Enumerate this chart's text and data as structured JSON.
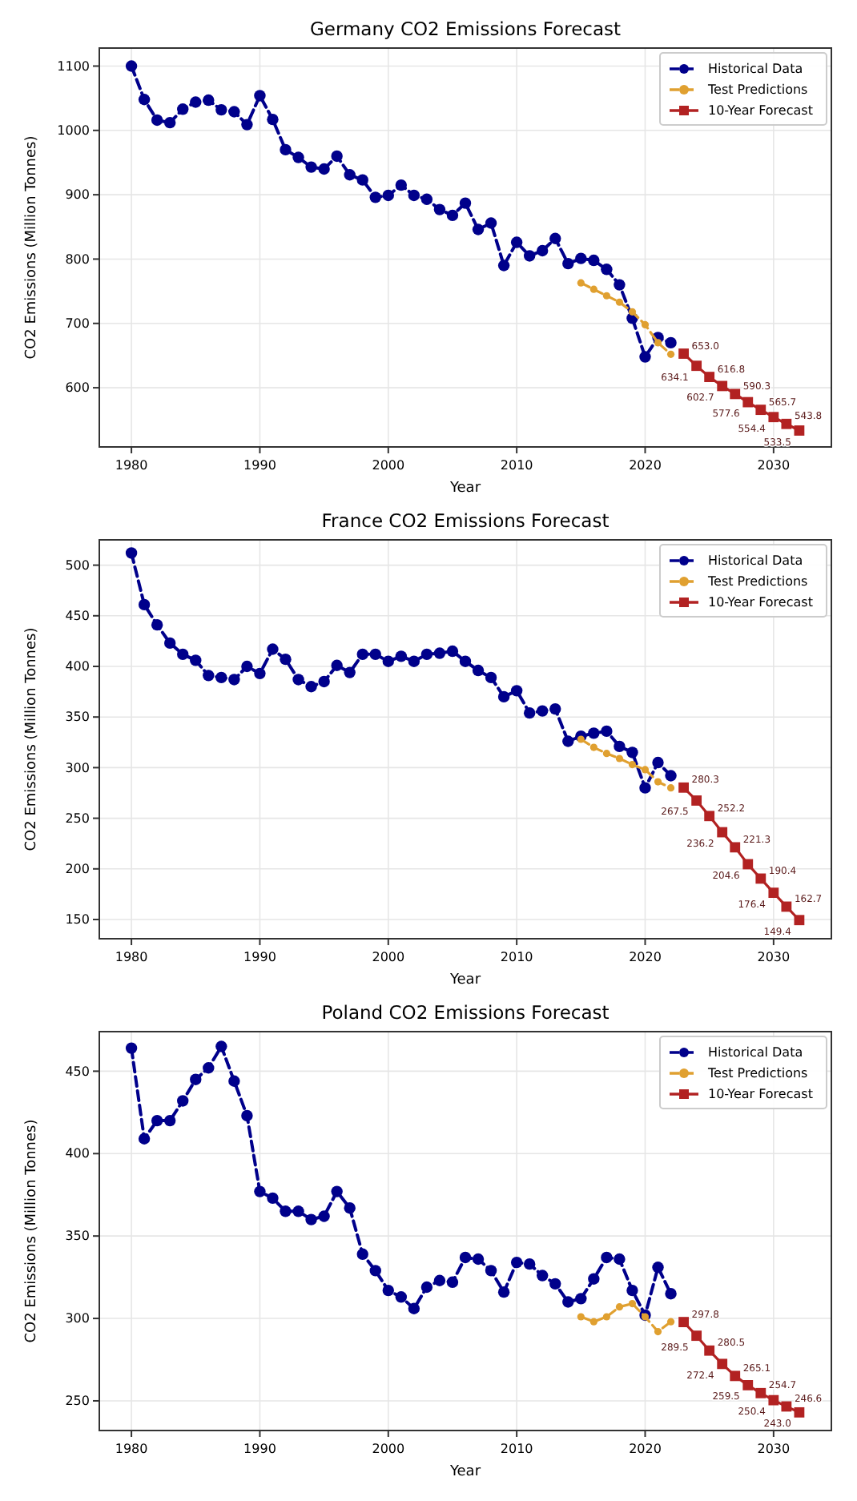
{
  "chart_data": [
    {
      "type": "line",
      "title": "Germany CO2 Emissions Forecast",
      "xlabel": "Year",
      "ylabel": "CO2 Emissions (Million Tonnes)",
      "xlim": [
        1977.5,
        2034.5
      ],
      "xticks": [
        1980,
        1990,
        2000,
        2010,
        2020,
        2030
      ],
      "ylim": [
        508,
        1128
      ],
      "yticks": [
        600,
        700,
        800,
        900,
        1000,
        1100
      ],
      "grid": true,
      "legend": "top right",
      "series": [
        {
          "name": "Historical Data",
          "color": "#00008b",
          "marker": "circle",
          "line_style": "dashed",
          "x": [
            1980,
            1981,
            1982,
            1983,
            1984,
            1985,
            1986,
            1987,
            1988,
            1989,
            1990,
            1991,
            1992,
            1993,
            1994,
            1995,
            1996,
            1997,
            1998,
            1999,
            2000,
            2001,
            2002,
            2003,
            2004,
            2005,
            2006,
            2007,
            2008,
            2009,
            2010,
            2011,
            2012,
            2013,
            2014,
            2015,
            2016,
            2017,
            2018,
            2019,
            2020,
            2021,
            2022
          ],
          "values": [
            1100,
            1048,
            1016,
            1012,
            1033,
            1044,
            1047,
            1032,
            1029,
            1009,
            1054,
            1017,
            970,
            958,
            943,
            940,
            960,
            931,
            923,
            896,
            899,
            915,
            899,
            893,
            877,
            868,
            887,
            846,
            856,
            790,
            826,
            805,
            813,
            832,
            793,
            801,
            798,
            784,
            760,
            708,
            648,
            678,
            670
          ]
        },
        {
          "name": "Test Predictions",
          "color": "#e0a030",
          "marker": "circle",
          "line_style": "dashed",
          "x": [
            2015,
            2016,
            2017,
            2018,
            2019,
            2020,
            2021,
            2022
          ],
          "values": [
            763,
            753,
            743,
            733,
            718,
            698,
            670,
            652
          ]
        },
        {
          "name": "10-Year Forecast",
          "color": "#b22222",
          "marker": "square",
          "line_style": "solid",
          "x": [
            2023,
            2024,
            2025,
            2026,
            2027,
            2028,
            2029,
            2030,
            2031,
            2032
          ],
          "values": [
            653.0,
            634.1,
            616.8,
            602.7,
            590.3,
            577.6,
            565.7,
            554.4,
            543.8,
            533.5
          ],
          "value_labels": [
            "653.0",
            "634.1",
            "616.8",
            "602.7",
            "590.3",
            "577.6",
            "565.7",
            "554.4",
            "543.8",
            "533.5"
          ]
        }
      ]
    },
    {
      "type": "line",
      "title": "France CO2 Emissions Forecast",
      "xlabel": "Year",
      "ylabel": "CO2 Emissions (Million Tonnes)",
      "xlim": [
        1977.5,
        2034.5
      ],
      "xticks": [
        1980,
        1990,
        2000,
        2010,
        2020,
        2030
      ],
      "ylim": [
        131,
        525
      ],
      "yticks": [
        150,
        200,
        250,
        300,
        350,
        400,
        450,
        500
      ],
      "grid": true,
      "legend": "top right",
      "series": [
        {
          "name": "Historical Data",
          "color": "#00008b",
          "marker": "circle",
          "line_style": "dashed",
          "x": [
            1980,
            1981,
            1982,
            1983,
            1984,
            1985,
            1986,
            1987,
            1988,
            1989,
            1990,
            1991,
            1992,
            1993,
            1994,
            1995,
            1996,
            1997,
            1998,
            1999,
            2000,
            2001,
            2002,
            2003,
            2004,
            2005,
            2006,
            2007,
            2008,
            2009,
            2010,
            2011,
            2012,
            2013,
            2014,
            2015,
            2016,
            2017,
            2018,
            2019,
            2020,
            2021,
            2022
          ],
          "values": [
            512,
            461,
            441,
            423,
            412,
            406,
            391,
            389,
            387,
            400,
            393,
            417,
            407,
            387,
            380,
            385,
            401,
            394,
            412,
            412,
            405,
            410,
            405,
            412,
            413,
            415,
            405,
            396,
            389,
            370,
            376,
            354,
            356,
            358,
            326,
            331,
            334,
            336,
            321,
            315,
            280,
            305,
            292
          ]
        },
        {
          "name": "Test Predictions",
          "color": "#e0a030",
          "marker": "circle",
          "line_style": "dashed",
          "x": [
            2015,
            2016,
            2017,
            2018,
            2019,
            2020,
            2021,
            2022
          ],
          "values": [
            328,
            320,
            314,
            309,
            303,
            298,
            286,
            280
          ]
        },
        {
          "name": "10-Year Forecast",
          "color": "#b22222",
          "marker": "square",
          "line_style": "solid",
          "x": [
            2023,
            2024,
            2025,
            2026,
            2027,
            2028,
            2029,
            2030,
            2031,
            2032
          ],
          "values": [
            280.3,
            267.5,
            252.2,
            236.2,
            221.3,
            204.6,
            190.4,
            176.4,
            162.7,
            149.4
          ],
          "value_labels": [
            "280.3",
            "267.5",
            "252.2",
            "236.2",
            "221.3",
            "204.6",
            "190.4",
            "176.4",
            "162.7",
            "149.4"
          ]
        }
      ]
    },
    {
      "type": "line",
      "title": "Poland CO2 Emissions Forecast",
      "xlabel": "Year",
      "ylabel": "CO2 Emissions (Million Tonnes)",
      "xlim": [
        1977.5,
        2034.5
      ],
      "xticks": [
        1980,
        1990,
        2000,
        2010,
        2020,
        2030
      ],
      "ylim": [
        232,
        474
      ],
      "yticks": [
        250,
        300,
        350,
        400,
        450
      ],
      "grid": true,
      "legend": "top right",
      "series": [
        {
          "name": "Historical Data",
          "color": "#00008b",
          "marker": "circle",
          "line_style": "dashed",
          "x": [
            1980,
            1981,
            1982,
            1983,
            1984,
            1985,
            1986,
            1987,
            1988,
            1989,
            1990,
            1991,
            1992,
            1993,
            1994,
            1995,
            1996,
            1997,
            1998,
            1999,
            2000,
            2001,
            2002,
            2003,
            2004,
            2005,
            2006,
            2007,
            2008,
            2009,
            2010,
            2011,
            2012,
            2013,
            2014,
            2015,
            2016,
            2017,
            2018,
            2019,
            2020,
            2021,
            2022
          ],
          "values": [
            464,
            409,
            420,
            420,
            432,
            445,
            452,
            465,
            444,
            423,
            377,
            373,
            365,
            365,
            360,
            362,
            377,
            367,
            339,
            329,
            317,
            313,
            306,
            319,
            323,
            322,
            337,
            336,
            329,
            316,
            334,
            333,
            326,
            321,
            310,
            312,
            324,
            337,
            336,
            317,
            302,
            331,
            315
          ]
        },
        {
          "name": "Test Predictions",
          "color": "#e0a030",
          "marker": "circle",
          "line_style": "dashed",
          "x": [
            2015,
            2016,
            2017,
            2018,
            2019,
            2020,
            2021,
            2022
          ],
          "values": [
            301,
            298,
            301,
            307,
            309,
            301,
            292,
            298
          ]
        },
        {
          "name": "10-Year Forecast",
          "color": "#b22222",
          "marker": "square",
          "line_style": "solid",
          "x": [
            2023,
            2024,
            2025,
            2026,
            2027,
            2028,
            2029,
            2030,
            2031,
            2032
          ],
          "values": [
            297.8,
            289.5,
            280.5,
            272.4,
            265.1,
            259.5,
            254.7,
            250.4,
            246.6,
            243.0
          ],
          "value_labels": [
            "297.8",
            "289.5",
            "280.5",
            "272.4",
            "265.1",
            "259.5",
            "254.7",
            "250.4",
            "246.6",
            "243.0"
          ]
        }
      ]
    }
  ]
}
